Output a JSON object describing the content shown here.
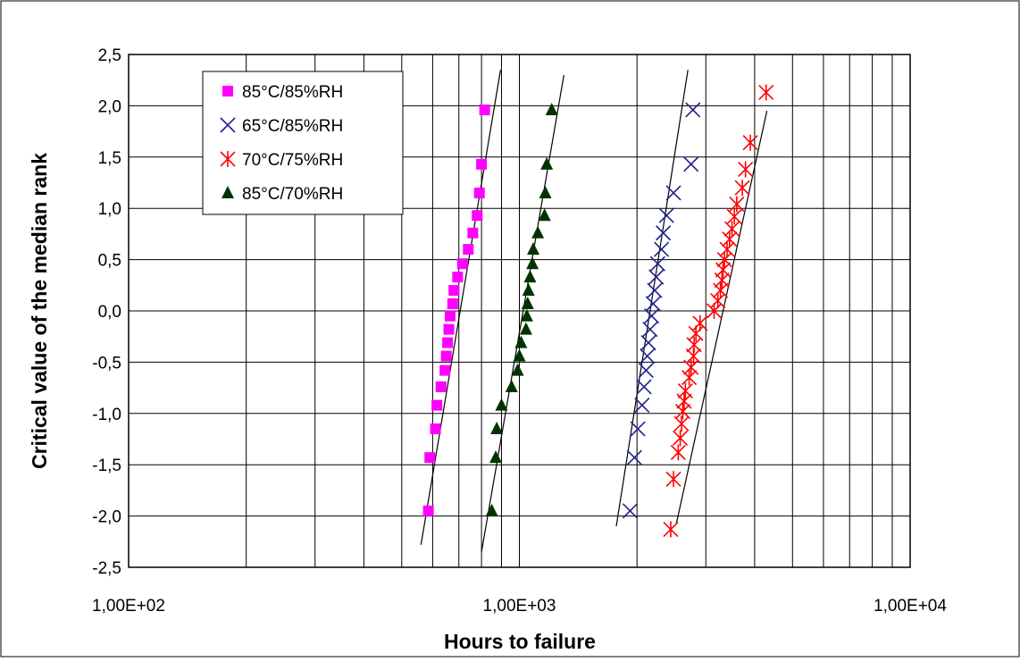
{
  "chart_data": {
    "type": "scatter",
    "title": "",
    "xlabel": "Hours to failure",
    "ylabel": "Critical value of the median rank",
    "x_scale": "log",
    "xlim": [
      100,
      10000
    ],
    "ylim": [
      -2.5,
      2.5
    ],
    "x_ticks": [
      100,
      1000,
      10000
    ],
    "x_tick_labels": [
      "1,00E+02",
      "1,00E+03",
      "1,00E+04"
    ],
    "y_ticks": [
      -2.5,
      -2.0,
      -1.5,
      -1.0,
      -0.5,
      0.0,
      0.5,
      1.0,
      1.5,
      2.0,
      2.5
    ],
    "y_tick_labels": [
      "-2,5",
      "-2,0",
      "-1,5",
      "-1,0",
      "-0,5",
      "0,0",
      "0,5",
      "1,0",
      "1,5",
      "2,0",
      "2,5"
    ],
    "grid": true,
    "legend_position": "top-left",
    "series": [
      {
        "name": "85°C/85%RH",
        "marker": "square",
        "color": "#ff00ff",
        "points": [
          [
            585,
            -1.95
          ],
          [
            590,
            -1.43
          ],
          [
            610,
            -1.15
          ],
          [
            615,
            -0.92
          ],
          [
            630,
            -0.74
          ],
          [
            645,
            -0.58
          ],
          [
            650,
            -0.44
          ],
          [
            655,
            -0.31
          ],
          [
            660,
            -0.18
          ],
          [
            665,
            -0.05
          ],
          [
            675,
            0.07
          ],
          [
            680,
            0.2
          ],
          [
            695,
            0.33
          ],
          [
            715,
            0.46
          ],
          [
            740,
            0.6
          ],
          [
            760,
            0.76
          ],
          [
            780,
            0.93
          ],
          [
            790,
            1.15
          ],
          [
            800,
            1.43
          ],
          [
            815,
            1.96
          ]
        ],
        "fit_line": [
          [
            560,
            -2.28
          ],
          [
            895,
            2.35
          ]
        ]
      },
      {
        "name": "65°C/85%RH",
        "marker": "x",
        "color": "#1f1f8f",
        "points": [
          [
            1920,
            -1.95
          ],
          [
            1970,
            -1.43
          ],
          [
            2010,
            -1.15
          ],
          [
            2060,
            -0.92
          ],
          [
            2085,
            -0.74
          ],
          [
            2110,
            -0.58
          ],
          [
            2125,
            -0.44
          ],
          [
            2140,
            -0.31
          ],
          [
            2160,
            -0.18
          ],
          [
            2180,
            -0.05
          ],
          [
            2200,
            0.07
          ],
          [
            2220,
            0.2
          ],
          [
            2240,
            0.33
          ],
          [
            2260,
            0.46
          ],
          [
            2310,
            0.6
          ],
          [
            2335,
            0.76
          ],
          [
            2380,
            0.93
          ],
          [
            2480,
            1.15
          ],
          [
            2750,
            1.43
          ],
          [
            2780,
            1.96
          ]
        ],
        "fit_line": [
          [
            1770,
            -2.1
          ],
          [
            2700,
            2.35
          ]
        ]
      },
      {
        "name": "70°C/75%RH",
        "marker": "asterisk",
        "color": "#ff0000",
        "points": [
          [
            2440,
            -2.13
          ],
          [
            2480,
            -1.64
          ],
          [
            2550,
            -1.38
          ],
          [
            2580,
            -1.24
          ],
          [
            2600,
            -1.1
          ],
          [
            2620,
            -0.98
          ],
          [
            2640,
            -0.88
          ],
          [
            2660,
            -0.78
          ],
          [
            2720,
            -0.65
          ],
          [
            2750,
            -0.55
          ],
          [
            2790,
            -0.44
          ],
          [
            2800,
            -0.33
          ],
          [
            2830,
            -0.22
          ],
          [
            2900,
            -0.12
          ],
          [
            3150,
            0.0
          ],
          [
            3220,
            0.1
          ],
          [
            3270,
            0.2
          ],
          [
            3300,
            0.3
          ],
          [
            3320,
            0.4
          ],
          [
            3350,
            0.5
          ],
          [
            3400,
            0.6
          ],
          [
            3450,
            0.7
          ],
          [
            3500,
            0.8
          ],
          [
            3550,
            0.92
          ],
          [
            3600,
            1.04
          ],
          [
            3720,
            1.2
          ],
          [
            3790,
            1.38
          ],
          [
            3900,
            1.64
          ],
          [
            4280,
            2.13
          ]
        ],
        "fit_line": [
          [
            2520,
            -2.08
          ],
          [
            4300,
            1.95
          ]
        ]
      },
      {
        "name": "85°C/70%RH",
        "marker": "triangle",
        "color": "#003300",
        "points": [
          [
            850,
            -1.95
          ],
          [
            870,
            -1.43
          ],
          [
            875,
            -1.15
          ],
          [
            900,
            -0.92
          ],
          [
            955,
            -0.74
          ],
          [
            990,
            -0.58
          ],
          [
            1000,
            -0.44
          ],
          [
            1010,
            -0.31
          ],
          [
            1040,
            -0.18
          ],
          [
            1045,
            -0.05
          ],
          [
            1050,
            0.07
          ],
          [
            1055,
            0.2
          ],
          [
            1065,
            0.33
          ],
          [
            1080,
            0.46
          ],
          [
            1085,
            0.6
          ],
          [
            1115,
            0.76
          ],
          [
            1160,
            0.93
          ],
          [
            1165,
            1.15
          ],
          [
            1175,
            1.43
          ],
          [
            1210,
            1.96
          ]
        ],
        "fit_line": [
          [
            800,
            -2.35
          ],
          [
            1300,
            2.3
          ]
        ]
      }
    ]
  }
}
